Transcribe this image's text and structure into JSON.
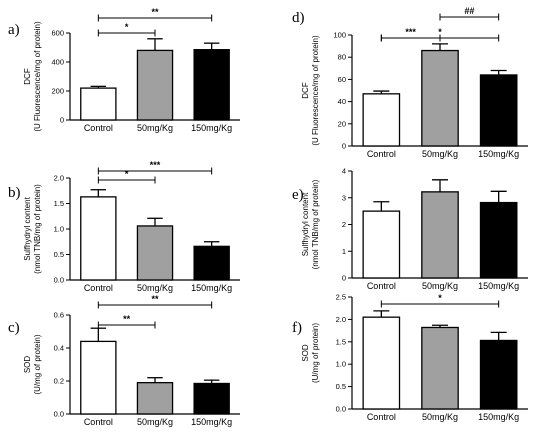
{
  "chart_data": [
    {
      "panel": "a)",
      "type": "bar",
      "categories": [
        "Control",
        "50mg/Kg",
        "150mg/Kg"
      ],
      "values": [
        220,
        480,
        485
      ],
      "errors": [
        12,
        80,
        45
      ],
      "ylabel_lines": [
        "DCF",
        "(U Fluorescence/mg of protein)"
      ],
      "ylim": [
        0,
        600
      ],
      "yticks": [
        0,
        200,
        400,
        600
      ],
      "bar_colors": [
        "#ffffff",
        "#a0a0a0",
        "#000000"
      ],
      "significance": [
        {
          "from": 0,
          "to": 1,
          "label": "*"
        },
        {
          "from": 0,
          "to": 2,
          "label": "**"
        }
      ]
    },
    {
      "panel": "b)",
      "type": "bar",
      "categories": [
        "Control",
        "50mg/Kg",
        "150mg/Kg"
      ],
      "values": [
        1.63,
        1.06,
        0.66
      ],
      "errors": [
        0.14,
        0.15,
        0.09
      ],
      "ylabel_lines": [
        "Sulfhydryl content",
        "(nmol TNB/mg of protein)"
      ],
      "ylim": [
        0,
        2.0
      ],
      "yticks": [
        "0.0",
        "0.5",
        "1.0",
        "1.5",
        "2.0"
      ],
      "bar_colors": [
        "#ffffff",
        "#a0a0a0",
        "#000000"
      ],
      "significance": [
        {
          "from": 0,
          "to": 1,
          "label": "*"
        },
        {
          "from": 0,
          "to": 2,
          "label": "***"
        }
      ]
    },
    {
      "panel": "c)",
      "type": "bar",
      "categories": [
        "Control",
        "50mg/Kg",
        "150mg/Kg"
      ],
      "values": [
        0.44,
        0.19,
        0.185
      ],
      "errors": [
        0.08,
        0.03,
        0.02
      ],
      "ylabel_lines": [
        "SOD",
        "(U/mg of protein)"
      ],
      "ylim": [
        0,
        0.6
      ],
      "yticks": [
        "0.0",
        "0.2",
        "0.4",
        "0.6"
      ],
      "bar_colors": [
        "#ffffff",
        "#a0a0a0",
        "#000000"
      ],
      "significance": [
        {
          "from": 0,
          "to": 1,
          "label": "**"
        },
        {
          "from": 0,
          "to": 2,
          "label": "**"
        }
      ]
    },
    {
      "panel": "d)",
      "type": "bar",
      "categories": [
        "Control",
        "50mg/Kg",
        "150mg/Kg"
      ],
      "values": [
        47,
        86,
        64
      ],
      "errors": [
        2.5,
        6,
        4
      ],
      "ylabel_lines": [
        "DCF",
        "(U Fluorescence/mg of protein)"
      ],
      "ylim": [
        0,
        100
      ],
      "yticks": [
        0,
        20,
        40,
        60,
        80,
        100
      ],
      "bar_colors": [
        "#ffffff",
        "#a0a0a0",
        "#000000"
      ],
      "significance": [
        {
          "from": 0,
          "to": 1,
          "label": "***"
        },
        {
          "from": 1,
          "to": 2,
          "label": "##"
        },
        {
          "from": 0,
          "to": 2,
          "label": "*"
        }
      ]
    },
    {
      "panel": "e)",
      "type": "bar",
      "categories": [
        "Control",
        "50mg/Kg",
        "150mg/Kg"
      ],
      "values": [
        2.5,
        3.22,
        2.82
      ],
      "errors": [
        0.35,
        0.45,
        0.42
      ],
      "ylabel_lines": [
        "Sulfhydryl content",
        "(nmol TNB/mg of protein)"
      ],
      "ylim": [
        0,
        4
      ],
      "yticks": [
        0,
        1,
        2,
        3,
        4
      ],
      "bar_colors": [
        "#ffffff",
        "#a0a0a0",
        "#000000"
      ],
      "significance": []
    },
    {
      "panel": "f)",
      "type": "bar",
      "categories": [
        "Control",
        "50mg/Kg",
        "150mg/Kg"
      ],
      "values": [
        2.05,
        1.82,
        1.53
      ],
      "errors": [
        0.14,
        0.05,
        0.18
      ],
      "ylabel_lines": [
        "SOD",
        "(U/mg of protein)"
      ],
      "ylim": [
        0,
        2.5
      ],
      "yticks": [
        "0.0",
        "0.5",
        "1.0",
        "1.5",
        "2.0",
        "2.5"
      ],
      "bar_colors": [
        "#ffffff",
        "#a0a0a0",
        "#000000"
      ],
      "significance": [
        {
          "from": 0,
          "to": 2,
          "label": "*"
        }
      ]
    }
  ]
}
